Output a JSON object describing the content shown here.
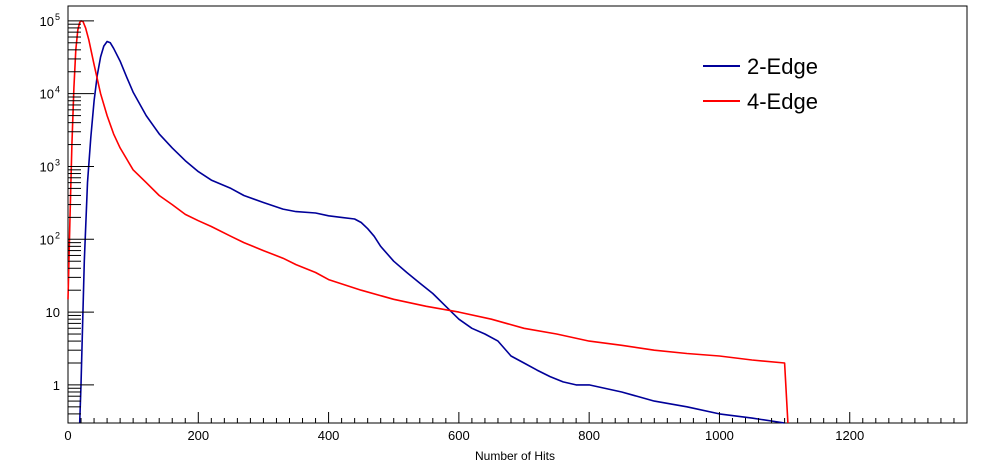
{
  "chart_data": {
    "type": "line",
    "title": "",
    "xlabel": "Number of Hits",
    "ylabel": "",
    "xlim": [
      0,
      1380
    ],
    "ylim": [
      0.3,
      160000
    ],
    "y_scale": "log",
    "grid": false,
    "legend_position": "top-right",
    "x_ticks": [
      {
        "value": 0,
        "label": "0"
      },
      {
        "value": 200,
        "label": "200"
      },
      {
        "value": 400,
        "label": "400"
      },
      {
        "value": 600,
        "label": "600"
      },
      {
        "value": 800,
        "label": "800"
      },
      {
        "value": 1000,
        "label": "1000"
      },
      {
        "value": 1200,
        "label": "1200"
      }
    ],
    "y_ticks": [
      {
        "value": 1,
        "label": "1"
      },
      {
        "value": 10,
        "label": "10"
      },
      {
        "value": 100,
        "label": "10",
        "exp": "2"
      },
      {
        "value": 1000,
        "label": "10",
        "exp": "3"
      },
      {
        "value": 10000,
        "label": "10",
        "exp": "4"
      },
      {
        "value": 100000,
        "label": "10",
        "exp": "5"
      }
    ],
    "series": [
      {
        "name": "2-Edge",
        "color": "#000099",
        "points": [
          [
            18,
            0.3
          ],
          [
            20,
            1
          ],
          [
            25,
            50
          ],
          [
            30,
            600
          ],
          [
            35,
            2500
          ],
          [
            40,
            8000
          ],
          [
            45,
            18000
          ],
          [
            50,
            32000
          ],
          [
            55,
            45000
          ],
          [
            60,
            52000
          ],
          [
            65,
            50000
          ],
          [
            70,
            42000
          ],
          [
            80,
            28000
          ],
          [
            90,
            17000
          ],
          [
            100,
            10500
          ],
          [
            120,
            5000
          ],
          [
            140,
            2800
          ],
          [
            160,
            1800
          ],
          [
            180,
            1200
          ],
          [
            200,
            850
          ],
          [
            220,
            650
          ],
          [
            250,
            500
          ],
          [
            270,
            400
          ],
          [
            300,
            320
          ],
          [
            330,
            260
          ],
          [
            350,
            240
          ],
          [
            380,
            230
          ],
          [
            400,
            210
          ],
          [
            420,
            200
          ],
          [
            440,
            190
          ],
          [
            450,
            170
          ],
          [
            460,
            140
          ],
          [
            470,
            110
          ],
          [
            480,
            80
          ],
          [
            500,
            50
          ],
          [
            520,
            35
          ],
          [
            540,
            25
          ],
          [
            560,
            18
          ],
          [
            580,
            12
          ],
          [
            600,
            8
          ],
          [
            620,
            6
          ],
          [
            640,
            5
          ],
          [
            660,
            4
          ],
          [
            680,
            2.5
          ],
          [
            700,
            2
          ],
          [
            720,
            1.6
          ],
          [
            740,
            1.3
          ],
          [
            760,
            1.1
          ],
          [
            780,
            1
          ],
          [
            800,
            1
          ],
          [
            850,
            0.8
          ],
          [
            900,
            0.6
          ],
          [
            950,
            0.5
          ],
          [
            1000,
            0.4
          ],
          [
            1050,
            0.35
          ],
          [
            1100,
            0.3
          ]
        ]
      },
      {
        "name": "4-Edge",
        "color": "#ff0000",
        "points": [
          [
            0,
            15
          ],
          [
            3,
            200
          ],
          [
            6,
            2000
          ],
          [
            9,
            12000
          ],
          [
            12,
            40000
          ],
          [
            15,
            75000
          ],
          [
            18,
            95000
          ],
          [
            20,
            100000
          ],
          [
            23,
            98000
          ],
          [
            27,
            80000
          ],
          [
            32,
            55000
          ],
          [
            40,
            25000
          ],
          [
            50,
            10000
          ],
          [
            60,
            5000
          ],
          [
            70,
            2800
          ],
          [
            80,
            1800
          ],
          [
            100,
            900
          ],
          [
            120,
            600
          ],
          [
            140,
            400
          ],
          [
            160,
            300
          ],
          [
            180,
            220
          ],
          [
            200,
            180
          ],
          [
            220,
            150
          ],
          [
            250,
            110
          ],
          [
            270,
            90
          ],
          [
            300,
            70
          ],
          [
            330,
            55
          ],
          [
            350,
            45
          ],
          [
            380,
            35
          ],
          [
            400,
            28
          ],
          [
            450,
            20
          ],
          [
            500,
            15
          ],
          [
            550,
            12
          ],
          [
            600,
            10
          ],
          [
            650,
            8
          ],
          [
            700,
            6
          ],
          [
            750,
            5
          ],
          [
            800,
            4
          ],
          [
            850,
            3.5
          ],
          [
            900,
            3
          ],
          [
            950,
            2.7
          ],
          [
            1000,
            2.5
          ],
          [
            1050,
            2.2
          ],
          [
            1100,
            2
          ],
          [
            1105,
            0.3
          ]
        ]
      }
    ]
  }
}
